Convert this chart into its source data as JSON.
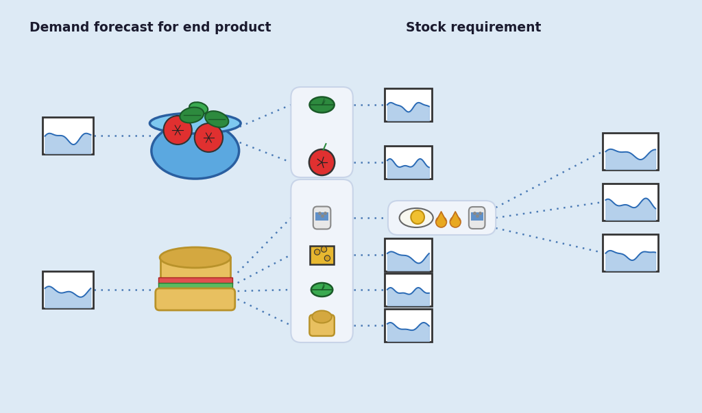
{
  "background_color": "#ddeaf5",
  "title_left": "Demand forecast for end product",
  "title_right": "Stock requirement",
  "title_fontsize": 13.5,
  "title_fontweight": "bold",
  "wave_fill": "#a8c8e8",
  "wave_line": "#2a6ab5",
  "dotted_color": "#4a7ab5",
  "ingredient_box_bg": "#f0f4fa",
  "leaf_green": "#2d8a3e",
  "leaf_green2": "#3aaa50",
  "leaf_ec": "#1a5a28",
  "tomato_red": "#e03030",
  "cheese_yellow": "#e8b830",
  "bread_top": "#d4a840",
  "bread_body": "#e8c060",
  "bread_ec": "#b8922a",
  "salt_body": "#e8e8e8",
  "salt_band": "#6090c8",
  "salt_ec": "#888888",
  "egg_white": "#f8f8f0",
  "egg_yolk": "#f0c030",
  "drop_color": "#e8a820",
  "bowl_body": "#5ba8e0",
  "bowl_rim": "#7ec8f0",
  "bowl_ec": "#2a5fa0"
}
